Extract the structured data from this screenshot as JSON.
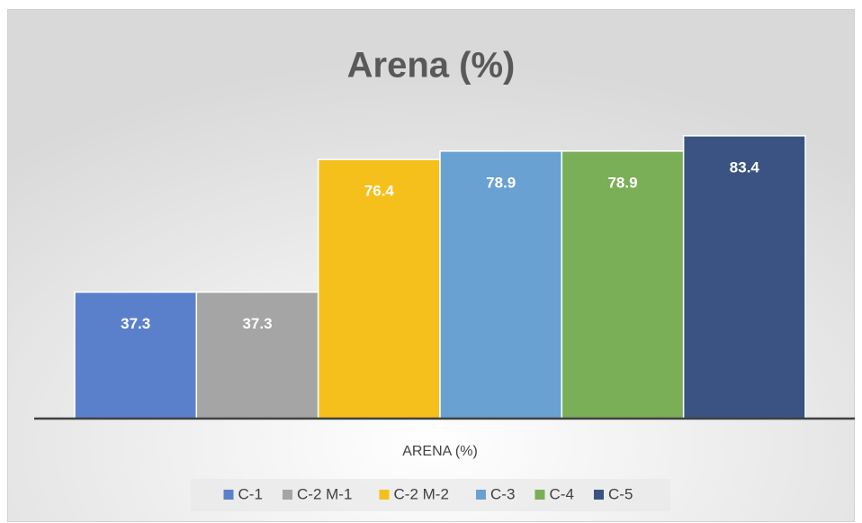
{
  "chart_data": {
    "type": "bar",
    "title": "Arena (%)",
    "categories": [
      "ARENA (%)"
    ],
    "series": [
      {
        "name": "C-1",
        "color": "#5b80cb",
        "values": [
          37.3
        ]
      },
      {
        "name": "C-2 M-1",
        "color": "#a5a5a5",
        "values": [
          37.3
        ]
      },
      {
        "name": "C-2 M-2",
        "color": "#f5c01b",
        "values": [
          76.4
        ]
      },
      {
        "name": "C-3",
        "color": "#69a1d3",
        "values": [
          78.9
        ]
      },
      {
        "name": "C-4",
        "color": "#7aae57",
        "values": [
          78.9
        ]
      },
      {
        "name": "C-5",
        "color": "#3a5382",
        "values": [
          83.4
        ]
      }
    ],
    "ylim": [
      0,
      90
    ],
    "grid": false,
    "legend": "bottom"
  }
}
